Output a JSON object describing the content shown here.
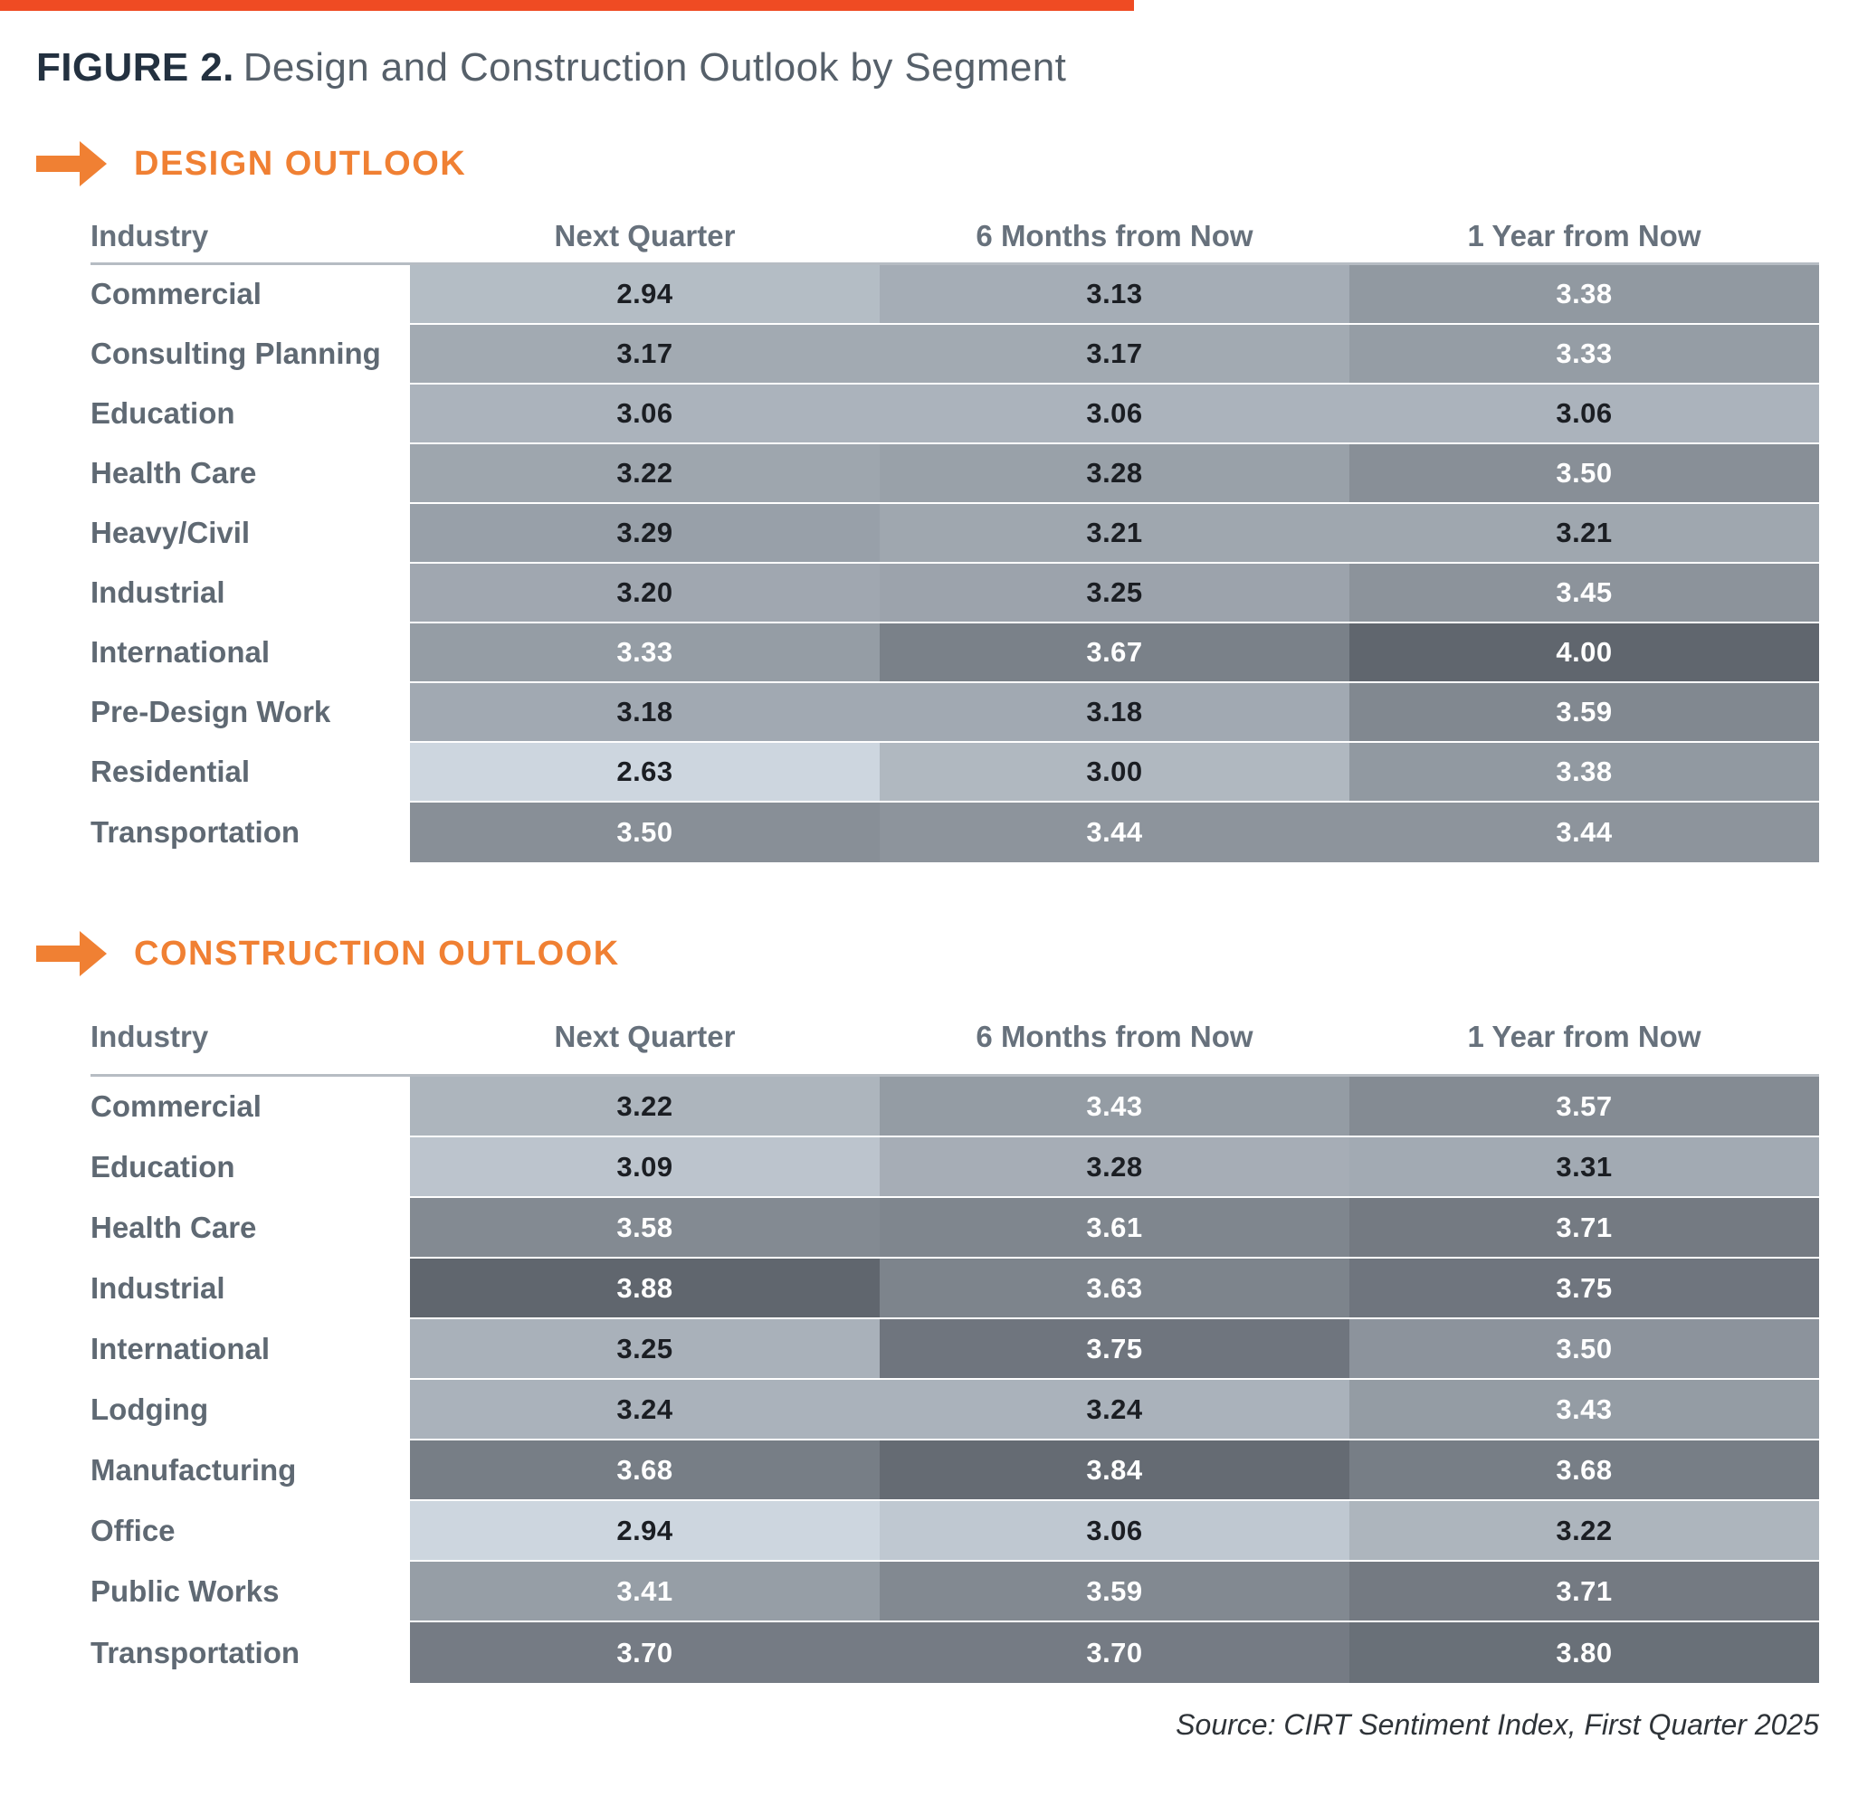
{
  "page": {
    "title_prefix": "FIGURE 2.",
    "title": "Design and Construction Outlook by Segment",
    "source": "Source: CIRT Sentiment Index, First Quarter 2025"
  },
  "colors": {
    "accent_orange": "#F08033",
    "top_bar_orange": "#EF4B23",
    "heat_low": "#CDD6DF",
    "heat_high": "#60666E",
    "value_text_dark": "#1B1E23",
    "value_text_light": "#FFFFFF"
  },
  "chart_data": [
    {
      "type": "heatmap",
      "title": "DESIGN OUTLOOK",
      "row_header": "Industry",
      "columns": [
        "Next Quarter",
        "6 Months from Now",
        "1 Year from Now"
      ],
      "categories": [
        "Commercial",
        "Consulting Planning",
        "Education",
        "Health Care",
        "Heavy/Civil",
        "Industrial",
        "International",
        "Pre-Design Work",
        "Residential",
        "Transportation"
      ],
      "values": [
        [
          2.94,
          3.13,
          3.38
        ],
        [
          3.17,
          3.17,
          3.33
        ],
        [
          3.06,
          3.06,
          3.06
        ],
        [
          3.22,
          3.28,
          3.5
        ],
        [
          3.29,
          3.21,
          3.21
        ],
        [
          3.2,
          3.25,
          3.45
        ],
        [
          3.33,
          3.67,
          4.0
        ],
        [
          3.18,
          3.18,
          3.59
        ],
        [
          2.63,
          3.0,
          3.38
        ],
        [
          3.5,
          3.44,
          3.44
        ]
      ],
      "value_range_observed": [
        2.63,
        4.0
      ],
      "color_scale": {
        "low": "#CDD6DF",
        "high": "#60666E",
        "normalize": "per-table-min-max"
      },
      "legend_position": "none",
      "grid": false
    },
    {
      "type": "heatmap",
      "title": "CONSTRUCTION OUTLOOK",
      "row_header": "Industry",
      "columns": [
        "Next Quarter",
        "6 Months from Now",
        "1 Year from Now"
      ],
      "categories": [
        "Commercial",
        "Education",
        "Health Care",
        "Industrial",
        "International",
        "Lodging",
        "Manufacturing",
        "Office",
        "Public Works",
        "Transportation"
      ],
      "values": [
        [
          3.22,
          3.43,
          3.57
        ],
        [
          3.09,
          3.28,
          3.31
        ],
        [
          3.58,
          3.61,
          3.71
        ],
        [
          3.88,
          3.63,
          3.75
        ],
        [
          3.25,
          3.75,
          3.5
        ],
        [
          3.24,
          3.24,
          3.43
        ],
        [
          3.68,
          3.84,
          3.68
        ],
        [
          2.94,
          3.06,
          3.22
        ],
        [
          3.41,
          3.59,
          3.71
        ],
        [
          3.7,
          3.7,
          3.8
        ]
      ],
      "value_range_observed": [
        2.94,
        3.88
      ],
      "color_scale": {
        "low": "#CDD6DF",
        "high": "#60666E",
        "normalize": "per-table-min-max"
      },
      "legend_position": "none",
      "grid": false
    }
  ]
}
